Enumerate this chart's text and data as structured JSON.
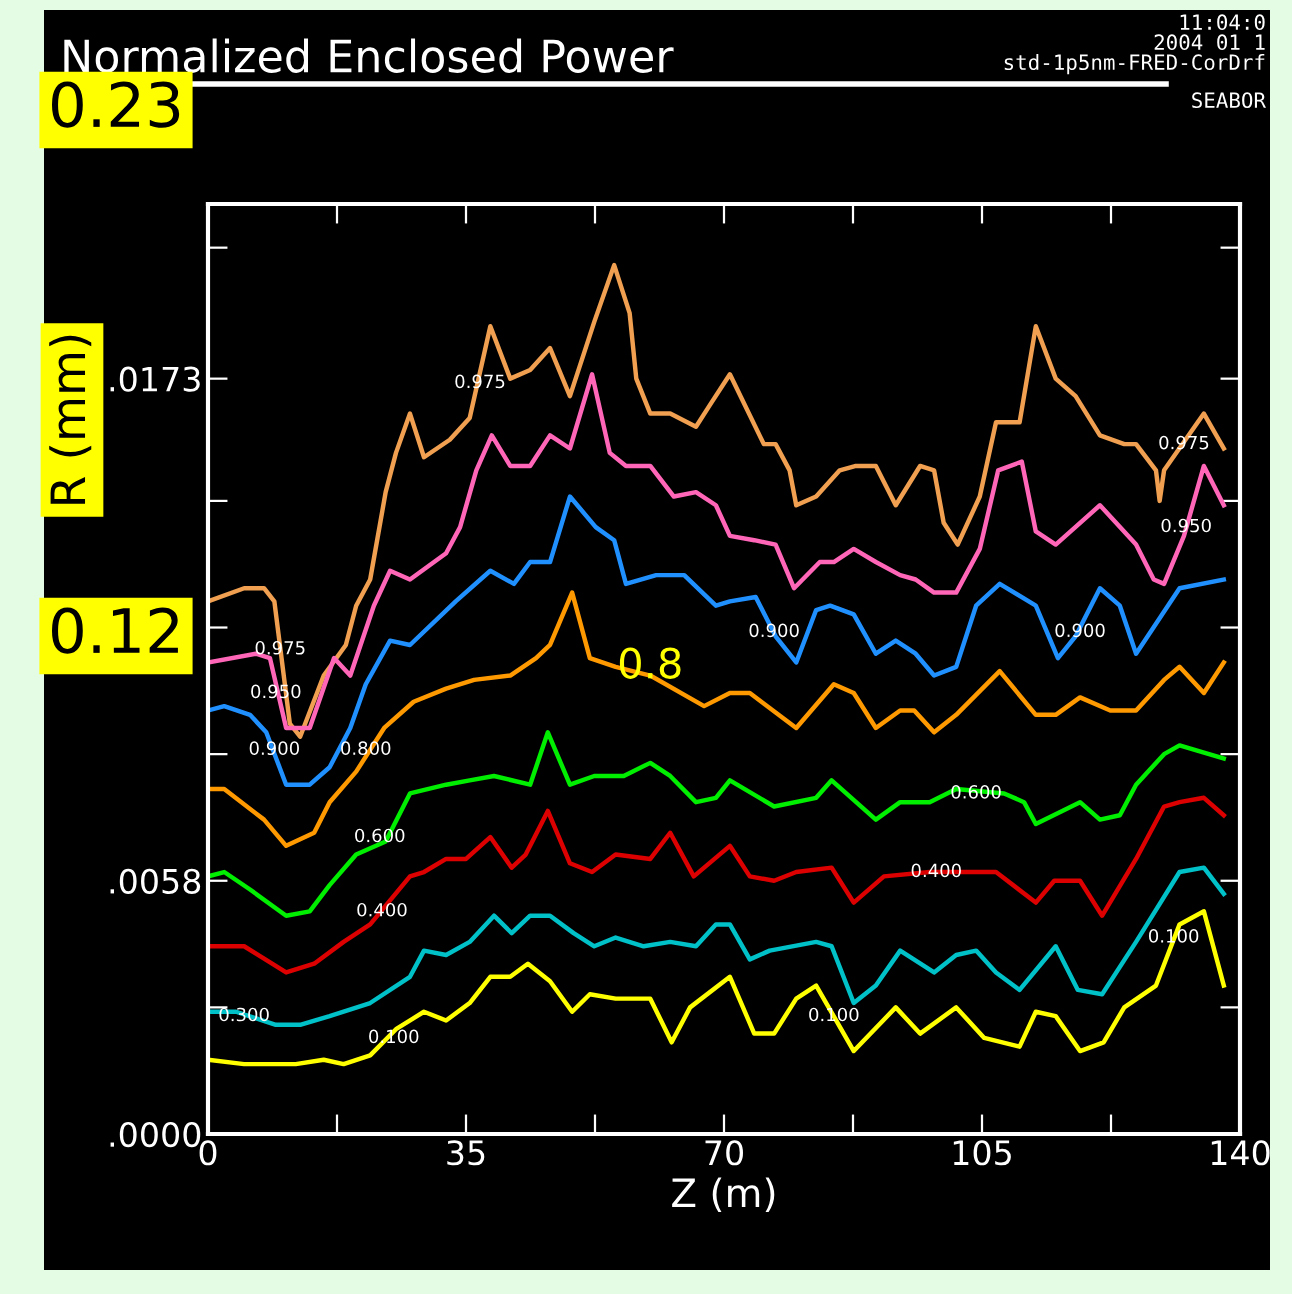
{
  "chart_data": {
    "type": "line",
    "title": "Normalized Enclosed Power",
    "xlabel": "Z (m)",
    "ylabel": "R (mm)",
    "xlim": [
      0,
      140
    ],
    "xticks": [
      0,
      {
        "value": 17.5,
        "label": null
      },
      35,
      {
        "value": 52.5,
        "label": null
      },
      70,
      {
        "value": 87.5,
        "label": null
      },
      105,
      {
        "value": 122.5,
        "label": null
      },
      140
    ],
    "ylim": [
      0,
      0.0213
    ],
    "yticks": [
      {
        "value": 0,
        "label": ".0000"
      },
      {
        "value": 0.0029,
        "label": null
      },
      {
        "value": 0.0058,
        "label": ".0058"
      },
      {
        "value": 0.0087,
        "label": null
      },
      {
        "value": 0.0116,
        "label": null
      },
      {
        "value": 0.0145,
        "label": null
      },
      {
        "value": 0.0173,
        "label": ".0173"
      },
      {
        "value": 0.0203,
        "label": null
      }
    ],
    "marker": "none",
    "line_style": "solid",
    "series": [
      {
        "color": "#f0a050",
        "x": [
          0,
          4.9,
          7.6,
          9.0,
          11.1,
          12.5,
          15.7,
          18.7,
          20.1,
          22.0,
          24.1,
          25.5,
          27.4,
          29.3,
          32.8,
          35.5,
          38.3,
          41.0,
          43.7,
          46.4,
          49.1,
          52.4,
          55.1,
          57.2,
          58.1,
          60.0,
          62.7,
          66.2,
          68.1,
          70.8,
          75.4,
          77.0,
          78.9,
          79.8,
          82.5,
          85.7,
          87.9,
          90.6,
          93.3,
          96.6,
          98.5,
          99.8,
          101.7,
          104.7,
          106.9,
          110.1,
          112.3,
          115.0,
          117.7,
          121.0,
          124.3,
          125.9,
          128.6,
          129.1,
          129.7,
          135.1,
          137.8
        ],
        "values": [
          0.0122,
          0.0125,
          0.0125,
          0.0122,
          0.0094,
          0.0091,
          0.0105,
          0.0112,
          0.0121,
          0.0127,
          0.0147,
          0.0156,
          0.0165,
          0.0155,
          0.0159,
          0.0164,
          0.0185,
          0.0173,
          0.0175,
          0.018,
          0.0169,
          0.0186,
          0.0199,
          0.0188,
          0.0173,
          0.0165,
          0.0165,
          0.0162,
          0.0167,
          0.0174,
          0.0158,
          0.0158,
          0.0152,
          0.0144,
          0.0146,
          0.0152,
          0.0153,
          0.0153,
          0.0144,
          0.0153,
          0.0152,
          0.014,
          0.0135,
          0.0146,
          0.0163,
          0.0163,
          0.0185,
          0.0173,
          0.0169,
          0.016,
          0.0158,
          0.0158,
          0.0152,
          0.0145,
          0.0152,
          0.0165,
          0.0157
        ]
      },
      {
        "color": "#ff66b8",
        "x": [
          0,
          6.5,
          8.4,
          10.6,
          13.8,
          17.1,
          19.3,
          22.5,
          24.7,
          27.4,
          32.3,
          34.2,
          36.4,
          38.5,
          41.0,
          43.7,
          46.4,
          49.1,
          52.1,
          54.5,
          56.7,
          60.0,
          63.2,
          66.2,
          68.9,
          70.8,
          74.1,
          77.0,
          79.5,
          83.0,
          84.9,
          87.6,
          90.6,
          93.9,
          96.0,
          98.5,
          101.5,
          104.7,
          107.2,
          110.4,
          112.3,
          115.0,
          121.0,
          125.9,
          128.3,
          129.7,
          132.4,
          135.1,
          137.8
        ],
        "values": [
          0.0108,
          0.011,
          0.0109,
          0.0093,
          0.0093,
          0.0109,
          0.0105,
          0.0121,
          0.0129,
          0.0127,
          0.0133,
          0.0139,
          0.0152,
          0.016,
          0.0153,
          0.0153,
          0.016,
          0.0157,
          0.0174,
          0.0156,
          0.0153,
          0.0153,
          0.0146,
          0.0147,
          0.0144,
          0.0137,
          0.0136,
          0.0135,
          0.0125,
          0.0131,
          0.0131,
          0.0134,
          0.0131,
          0.0128,
          0.0127,
          0.0124,
          0.0124,
          0.0134,
          0.0152,
          0.0154,
          0.0138,
          0.0135,
          0.0144,
          0.0135,
          0.0127,
          0.0126,
          0.0137,
          0.0153,
          0.0144
        ]
      },
      {
        "color": "#2090ff",
        "x": [
          0,
          2.2,
          5.7,
          7.9,
          10.6,
          13.8,
          16.5,
          19.3,
          21.4,
          24.7,
          27.4,
          33.6,
          38.3,
          41.5,
          43.7,
          46.4,
          49.1,
          52.6,
          55.1,
          56.7,
          60.8,
          64.6,
          68.9,
          70.8,
          74.3,
          77.0,
          79.8,
          82.5,
          84.4,
          87.6,
          90.6,
          93.3,
          96.0,
          98.5,
          101.5,
          104.2,
          107.4,
          112.3,
          115.3,
          117.7,
          121.0,
          123.7,
          125.9,
          131.8,
          137.8
        ],
        "values": [
          0.0097,
          0.0098,
          0.0096,
          0.0092,
          0.008,
          0.008,
          0.0084,
          0.0093,
          0.0103,
          0.0113,
          0.0112,
          0.0122,
          0.0129,
          0.0126,
          0.0131,
          0.0131,
          0.0146,
          0.0139,
          0.0136,
          0.0126,
          0.0128,
          0.0128,
          0.0121,
          0.0122,
          0.0123,
          0.0114,
          0.0108,
          0.012,
          0.0121,
          0.0119,
          0.011,
          0.0113,
          0.011,
          0.0105,
          0.0107,
          0.0121,
          0.0126,
          0.0121,
          0.0109,
          0.0114,
          0.0125,
          0.0121,
          0.011,
          0.0125,
          0.0127
        ]
      },
      {
        "color": "#ff9900",
        "x": [
          0,
          2.2,
          7.6,
          10.6,
          14.4,
          16.5,
          20.1,
          23.9,
          27.9,
          32.3,
          36.1,
          41.0,
          44.5,
          46.4,
          49.4,
          51.8,
          55.3,
          60.0,
          67.3,
          70.8,
          73.5,
          79.8,
          84.9,
          87.6,
          90.6,
          93.9,
          95.8,
          98.5,
          101.5,
          107.4,
          112.3,
          115.0,
          118.3,
          122.4,
          125.9,
          129.7,
          131.8,
          135.1,
          137.8
        ],
        "values": [
          0.0079,
          0.0079,
          0.0072,
          0.0066,
          0.0069,
          0.0076,
          0.0083,
          0.0093,
          0.0099,
          0.0102,
          0.0104,
          0.0105,
          0.0109,
          0.0112,
          0.0124,
          0.0109,
          0.0107,
          0.0105,
          0.0098,
          0.0101,
          0.0101,
          0.0093,
          0.0103,
          0.0101,
          0.0093,
          0.0097,
          0.0097,
          0.0092,
          0.0096,
          0.0106,
          0.0096,
          0.0096,
          0.01,
          0.0097,
          0.0097,
          0.0104,
          0.0107,
          0.0101,
          0.0108
        ]
      },
      {
        "color": "#00ee00",
        "x": [
          0,
          2.2,
          5.7,
          10.6,
          13.8,
          16.5,
          20.1,
          24.1,
          27.4,
          32.3,
          35.5,
          38.8,
          43.7,
          46.1,
          49.1,
          52.4,
          56.4,
          60.0,
          62.7,
          66.2,
          68.9,
          70.8,
          76.8,
          82.5,
          84.6,
          90.6,
          93.9,
          97.9,
          101.5,
          108.0,
          110.7,
          112.3,
          118.3,
          121.0,
          123.7,
          125.9,
          129.7,
          131.8,
          137.8
        ],
        "values": [
          0.0059,
          0.006,
          0.0056,
          0.005,
          0.0051,
          0.0057,
          0.0064,
          0.0067,
          0.0078,
          0.008,
          0.0081,
          0.0082,
          0.008,
          0.0092,
          0.008,
          0.0082,
          0.0082,
          0.0085,
          0.0082,
          0.0076,
          0.0077,
          0.0081,
          0.0075,
          0.0077,
          0.0081,
          0.0072,
          0.0076,
          0.0076,
          0.0079,
          0.0078,
          0.0076,
          0.0071,
          0.0076,
          0.0072,
          0.0073,
          0.008,
          0.0087,
          0.0089,
          0.0086
        ]
      },
      {
        "color": "#dd0000",
        "x": [
          0,
          4.9,
          10.6,
          14.4,
          18.4,
          22.0,
          27.4,
          29.3,
          32.3,
          35.0,
          38.3,
          41.2,
          43.1,
          46.1,
          49.1,
          52.1,
          55.3,
          60.0,
          62.7,
          65.9,
          70.8,
          73.5,
          76.8,
          79.8,
          84.6,
          87.6,
          91.7,
          97.9,
          106.9,
          112.3,
          114.8,
          118.3,
          121.3,
          125.9,
          129.7,
          131.8,
          135.1,
          137.8
        ],
        "values": [
          0.0043,
          0.0043,
          0.0037,
          0.0039,
          0.0044,
          0.0048,
          0.0059,
          0.006,
          0.0063,
          0.0063,
          0.0068,
          0.0061,
          0.0064,
          0.0074,
          0.0062,
          0.006,
          0.0064,
          0.0063,
          0.0069,
          0.0059,
          0.0066,
          0.0059,
          0.0058,
          0.006,
          0.0061,
          0.0053,
          0.0059,
          0.006,
          0.006,
          0.0053,
          0.0058,
          0.0058,
          0.005,
          0.0063,
          0.0075,
          0.0076,
          0.0077,
          0.0073
        ]
      },
      {
        "color": "#00c0c8",
        "x": [
          0,
          3.8,
          9.2,
          12.5,
          16.5,
          22.0,
          27.4,
          29.3,
          32.3,
          35.5,
          38.8,
          41.2,
          43.7,
          46.4,
          49.6,
          52.4,
          55.3,
          59.1,
          62.7,
          66.2,
          68.9,
          70.8,
          73.5,
          76.2,
          82.5,
          84.6,
          87.6,
          90.6,
          93.9,
          98.5,
          101.5,
          104.2,
          106.9,
          110.1,
          115.0,
          118.0,
          121.3,
          125.9,
          131.8,
          135.1,
          137.8
        ],
        "values": [
          0.0028,
          0.0028,
          0.0025,
          0.0025,
          0.0027,
          0.003,
          0.0036,
          0.0042,
          0.0041,
          0.0044,
          0.005,
          0.0046,
          0.005,
          0.005,
          0.0046,
          0.0043,
          0.0045,
          0.0043,
          0.0044,
          0.0043,
          0.0048,
          0.0048,
          0.004,
          0.0042,
          0.0044,
          0.0043,
          0.003,
          0.0034,
          0.0042,
          0.0037,
          0.0041,
          0.0042,
          0.0037,
          0.0033,
          0.0043,
          0.0033,
          0.0032,
          0.0044,
          0.006,
          0.0061,
          0.0055
        ]
      },
      {
        "color": "#ffff00",
        "x": [
          0,
          4.9,
          11.9,
          15.7,
          18.4,
          22.0,
          25.5,
          29.3,
          32.3,
          35.5,
          38.3,
          41.0,
          43.4,
          46.4,
          49.4,
          51.8,
          55.3,
          60.0,
          62.9,
          65.4,
          70.8,
          74.1,
          76.8,
          79.8,
          82.5,
          87.6,
          93.3,
          96.6,
          101.5,
          105.3,
          110.1,
          112.3,
          115.0,
          118.3,
          121.5,
          124.3,
          128.6,
          131.8,
          135.1,
          137.8
        ],
        "values": [
          0.0017,
          0.0016,
          0.0016,
          0.0017,
          0.0016,
          0.0018,
          0.0024,
          0.0028,
          0.0026,
          0.003,
          0.0036,
          0.0036,
          0.0039,
          0.0035,
          0.0028,
          0.0032,
          0.0031,
          0.0031,
          0.0021,
          0.0029,
          0.0036,
          0.0023,
          0.0023,
          0.0031,
          0.0034,
          0.0019,
          0.0029,
          0.0023,
          0.0029,
          0.0022,
          0.002,
          0.0028,
          0.0027,
          0.0019,
          0.0021,
          0.0029,
          0.0034,
          0.0048,
          0.0051,
          0.0034
        ]
      }
    ],
    "annotations": [
      "11:04:0",
      "2004 01 1",
      "std-1p5nm-FRED-CorDrf",
      "SEABOR",
      "0.23",
      "0.12",
      {
        "text": "0.975",
        "x": 36.9,
        "y": 0.0172
      },
      {
        "text": "0.975",
        "x": 9.8,
        "y": 0.0111
      },
      {
        "text": "0.975",
        "x": 132.4,
        "y": 0.0158
      },
      {
        "text": "0.950",
        "x": 9.2,
        "y": 0.0101
      },
      {
        "text": "0.950",
        "x": 132.7,
        "y": 0.0139
      },
      {
        "text": "0.900",
        "x": 9.0,
        "y": 0.0088
      },
      {
        "text": "0.900",
        "x": 76.8,
        "y": 0.0115
      },
      {
        "text": "0.900",
        "x": 118.3,
        "y": 0.0115
      },
      {
        "text": "0.800",
        "x": 21.4,
        "y": 0.0088
      },
      {
        "text": "0.600",
        "x": 23.3,
        "y": 0.0068
      },
      {
        "text": "0.600",
        "x": 104.2,
        "y": 0.0078
      },
      {
        "text": "0.400",
        "x": 23.6,
        "y": 0.0051
      },
      {
        "text": "0.400",
        "x": 98.8,
        "y": 0.006
      },
      {
        "text": "0.300",
        "x": 4.9,
        "y": 0.0027
      },
      {
        "text": "0.100",
        "x": 25.2,
        "y": 0.0022
      },
      {
        "text": "0.100",
        "x": 84.9,
        "y": 0.0027
      },
      {
        "text": "0.100",
        "x": 131.0,
        "y": 0.0045
      },
      {
        "text": "0.8",
        "x": 60.0,
        "y": 0.0107
      }
    ]
  }
}
